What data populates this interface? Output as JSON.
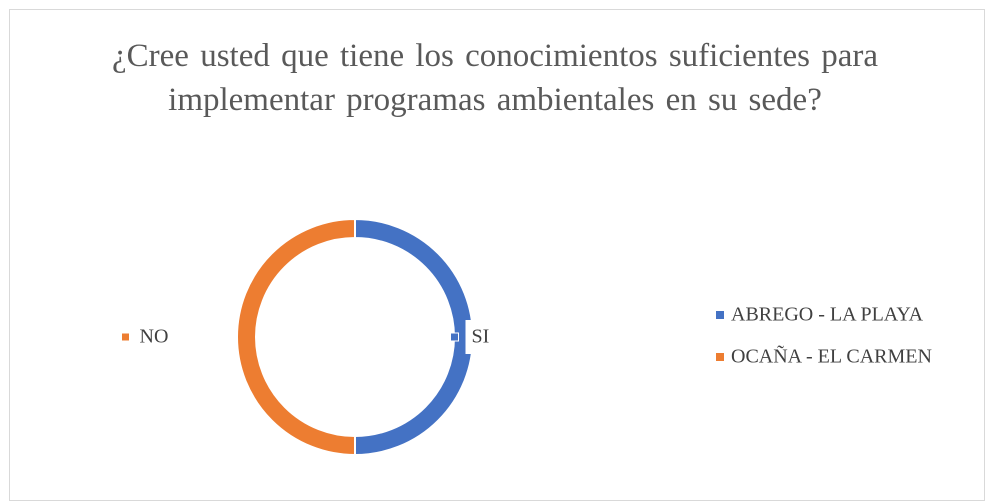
{
  "chart_data": {
    "type": "donut",
    "title": "¿Cree usted que tiene los conocimientos suficientes para implementar programas ambientales en su sede?",
    "categories": [
      "ABREGO - LA PLAYA",
      "OCAÑA - EL CARMEN"
    ],
    "values": [
      50,
      50
    ],
    "colors": [
      "#4472c4",
      "#ed7d31"
    ],
    "data_labels": [
      "SI",
      "NO"
    ],
    "legend": "right"
  }
}
